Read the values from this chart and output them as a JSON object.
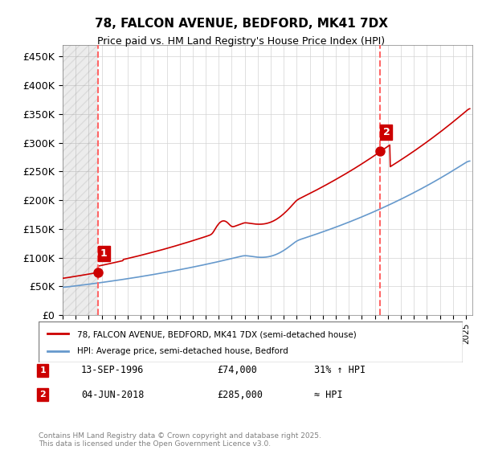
{
  "title": "78, FALCON AVENUE, BEDFORD, MK41 7DX",
  "subtitle": "Price paid vs. HM Land Registry's House Price Index (HPI)",
  "ylabel": "",
  "ylim": [
    0,
    470000
  ],
  "yticks": [
    0,
    50000,
    100000,
    150000,
    200000,
    250000,
    300000,
    350000,
    400000,
    450000
  ],
  "ytick_labels": [
    "£0",
    "£50K",
    "£100K",
    "£150K",
    "£200K",
    "£250K",
    "£300K",
    "£350K",
    "£400K",
    "£450K"
  ],
  "xlim_start": 1994.0,
  "xlim_end": 2025.5,
  "price_color": "#cc0000",
  "hpi_color": "#6699cc",
  "marker_color": "#cc0000",
  "vline_color": "#ff6666",
  "annotation1_box_color": "#cc0000",
  "annotation2_box_color": "#cc0000",
  "legend_label1": "78, FALCON AVENUE, BEDFORD, MK41 7DX (semi-detached house)",
  "legend_label2": "HPI: Average price, semi-detached house, Bedford",
  "sale1_label": "1",
  "sale1_date": "13-SEP-1996",
  "sale1_price": "£74,000",
  "sale1_hpi": "31% ↑ HPI",
  "sale2_label": "2",
  "sale2_date": "04-JUN-2018",
  "sale2_price": "£285,000",
  "sale2_hpi": "≈ HPI",
  "footnote": "Contains HM Land Registry data © Crown copyright and database right 2025.\nThis data is licensed under the Open Government Licence v3.0.",
  "sale1_year": 1996.7,
  "sale1_value": 74000,
  "sale2_year": 2018.42,
  "sale2_value": 285000,
  "background_hatch_end": 1996.7
}
